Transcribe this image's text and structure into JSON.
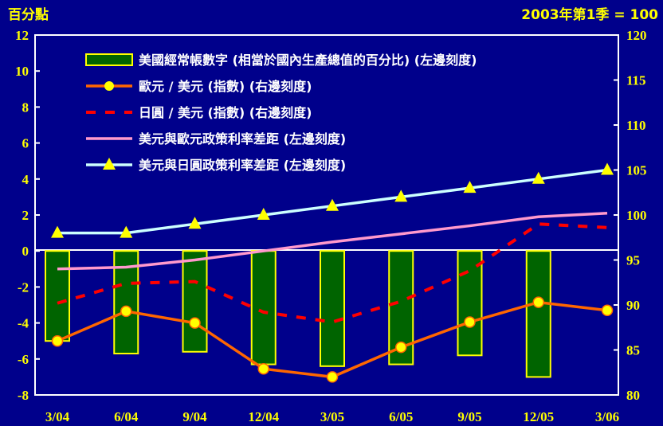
{
  "chart_data": {
    "type": "bar+line",
    "left_unit": "百分點",
    "right_unit": "2003年第1季 = 100",
    "categories": [
      "3/04",
      "6/04",
      "9/04",
      "12/04",
      "3/05",
      "6/05",
      "9/05",
      "12/05",
      "3/06"
    ],
    "left_ylim": [
      -8,
      12
    ],
    "left_ticks": [
      "12",
      "10",
      "8",
      "6",
      "4",
      "2",
      "0",
      "-2",
      "-4",
      "-6",
      "-8"
    ],
    "right_ylim": [
      80,
      120
    ],
    "right_ticks": [
      "120",
      "115",
      "110",
      "105",
      "100",
      "95",
      "90",
      "85",
      "80"
    ],
    "grid": false,
    "legend_placement": "top",
    "series": [
      {
        "name": "美國經常帳數字 (相當於國內生產總值的百分比) (左邊刻度)",
        "kind": "bar",
        "axis": "left",
        "color": "#006400",
        "border": "#FFFF00",
        "values": [
          -5.0,
          -5.7,
          -5.6,
          -6.3,
          -6.4,
          -6.3,
          -5.8,
          -7.0,
          null
        ]
      },
      {
        "name": "歐元 / 美元 (指數) (右邊刻度)",
        "kind": "line",
        "axis": "right",
        "color": "#FF6600",
        "marker": "circle",
        "marker_color": "#FFFF00",
        "values": [
          86.0,
          89.3,
          88.0,
          82.9,
          82.0,
          85.3,
          88.1,
          90.3,
          89.4
        ]
      },
      {
        "name": "日圓 / 美元 (指數) (右邊刻度)",
        "kind": "line",
        "axis": "right",
        "color": "#FF0000",
        "dash": true,
        "values": [
          90.2,
          92.4,
          92.6,
          89.2,
          88.1,
          90.4,
          93.8,
          99.0,
          98.6
        ]
      },
      {
        "name": "美元與歐元政策利率差距 (左邊刻度)",
        "kind": "line",
        "axis": "left",
        "color": "#FF99CC",
        "values": [
          -1.0,
          -0.9,
          -0.5,
          0.0,
          0.5,
          0.95,
          1.4,
          1.9,
          2.1
        ]
      },
      {
        "name": "美元與日圓政策利率差距 (左邊刻度)",
        "kind": "line",
        "axis": "left",
        "color": "#CCFFFF",
        "marker": "triangle",
        "marker_color": "#FFFF00",
        "values": [
          1.0,
          1.0,
          1.5,
          2.0,
          2.5,
          3.0,
          3.5,
          4.0,
          4.5
        ]
      }
    ]
  }
}
